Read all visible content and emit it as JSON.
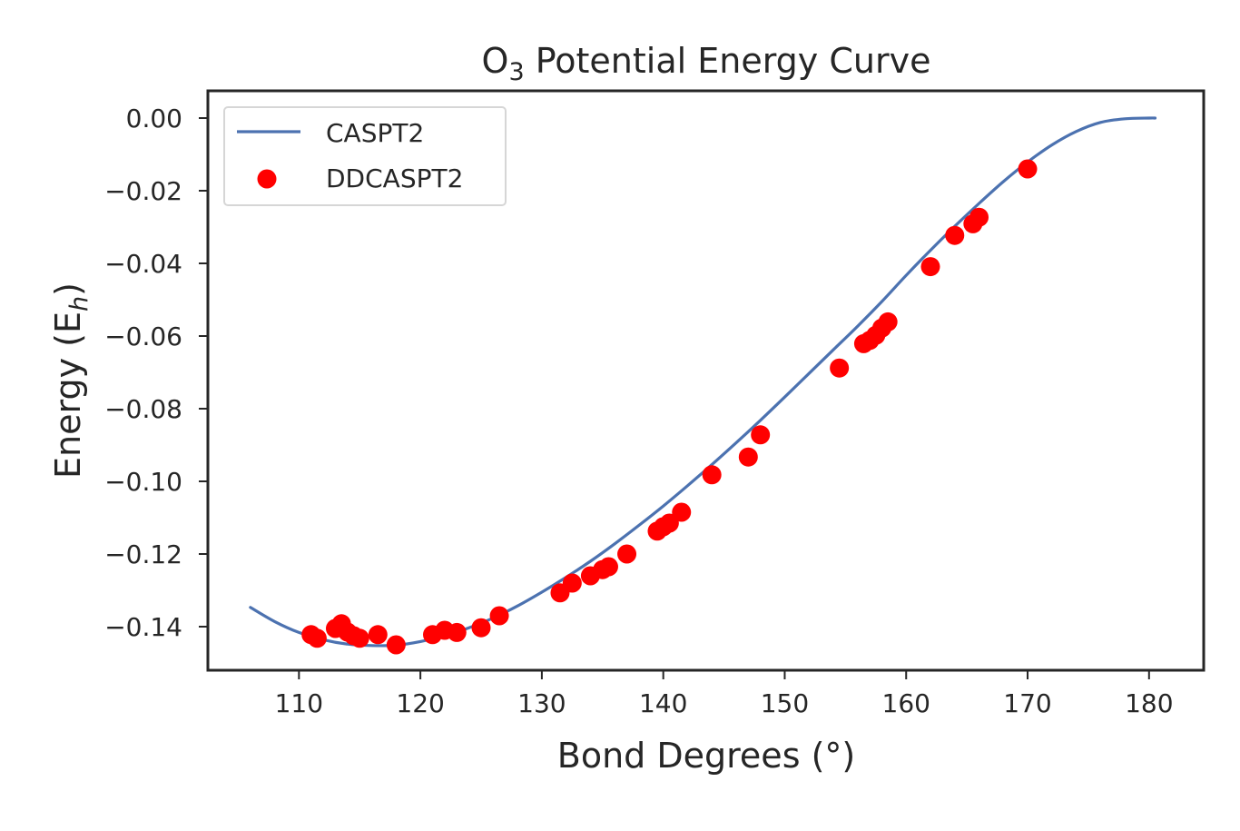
{
  "chart_data": {
    "type": "line",
    "title": {
      "prefix": "O",
      "subscript": "3",
      "suffix": " Potential Energy Curve"
    },
    "xlabel": "Bond Degrees (°)",
    "ylabel": {
      "prefix": "Energy (E",
      "subscript": "h",
      "suffix": ")"
    },
    "xlim": [
      102.5,
      184.5
    ],
    "ylim": [
      -0.152,
      0.0075
    ],
    "xticks": [
      110,
      120,
      130,
      140,
      150,
      160,
      170,
      180
    ],
    "yticks": [
      0.0,
      -0.02,
      -0.04,
      -0.06,
      -0.08,
      -0.1,
      -0.12,
      -0.14
    ],
    "ytick_labels": [
      "0.00",
      "−0.02",
      "−0.04",
      "−0.06",
      "−0.08",
      "−0.10",
      "−0.12",
      "−0.14"
    ],
    "grid": false,
    "legend": {
      "position": "top-left",
      "entries": [
        "CASPT2",
        "DDCASPT2"
      ]
    },
    "series": [
      {
        "name": "CASPT2",
        "kind": "line",
        "color": "#4c72b0",
        "x": [
          106,
          108,
          110,
          112,
          114,
          116,
          118,
          120,
          122,
          124,
          126,
          128,
          130,
          132,
          134,
          136,
          138,
          140,
          142,
          144,
          146,
          148,
          150,
          152,
          154,
          156,
          158,
          160,
          162,
          164,
          166,
          168,
          170,
          172,
          174,
          176,
          178,
          180,
          180.5
        ],
        "y": [
          -0.1347,
          -0.1386,
          -0.1416,
          -0.1436,
          -0.1448,
          -0.1452,
          -0.1451,
          -0.1441,
          -0.1425,
          -0.1403,
          -0.1376,
          -0.1343,
          -0.1305,
          -0.1264,
          -0.122,
          -0.1172,
          -0.1121,
          -0.1068,
          -0.1012,
          -0.0954,
          -0.0894,
          -0.0832,
          -0.0768,
          -0.0703,
          -0.0638,
          -0.0573,
          -0.0505,
          -0.0433,
          -0.0364,
          -0.0298,
          -0.0235,
          -0.0175,
          -0.0121,
          -0.0074,
          -0.0037,
          -0.0012,
          -0.0002,
          0.0,
          0.0
        ]
      },
      {
        "name": "DDCASPT2",
        "kind": "scatter",
        "color": "#ff0000",
        "x": [
          111.0,
          111.5,
          113.0,
          113.5,
          114.0,
          114.5,
          115.0,
          116.5,
          118.0,
          121.0,
          122.0,
          123.0,
          125.0,
          126.5,
          131.5,
          132.5,
          134.0,
          135.0,
          135.5,
          137.0,
          139.5,
          140.0,
          140.5,
          141.5,
          144.0,
          147.0,
          148.0,
          154.5,
          156.5,
          157.0,
          157.5,
          158.0,
          158.5,
          162.0,
          164.0,
          165.5,
          166.0,
          170.0
        ],
        "y": [
          -0.1422,
          -0.1432,
          -0.1405,
          -0.1392,
          -0.1415,
          -0.1425,
          -0.1432,
          -0.1422,
          -0.145,
          -0.1422,
          -0.141,
          -0.1416,
          -0.1403,
          -0.137,
          -0.1307,
          -0.128,
          -0.126,
          -0.1243,
          -0.1235,
          -0.12,
          -0.1137,
          -0.1125,
          -0.1115,
          -0.1085,
          -0.0982,
          -0.0933,
          -0.0872,
          -0.0688,
          -0.0621,
          -0.0612,
          -0.0598,
          -0.0578,
          -0.0561,
          -0.0409,
          -0.0323,
          -0.0291,
          -0.0273,
          -0.014
        ]
      }
    ]
  }
}
